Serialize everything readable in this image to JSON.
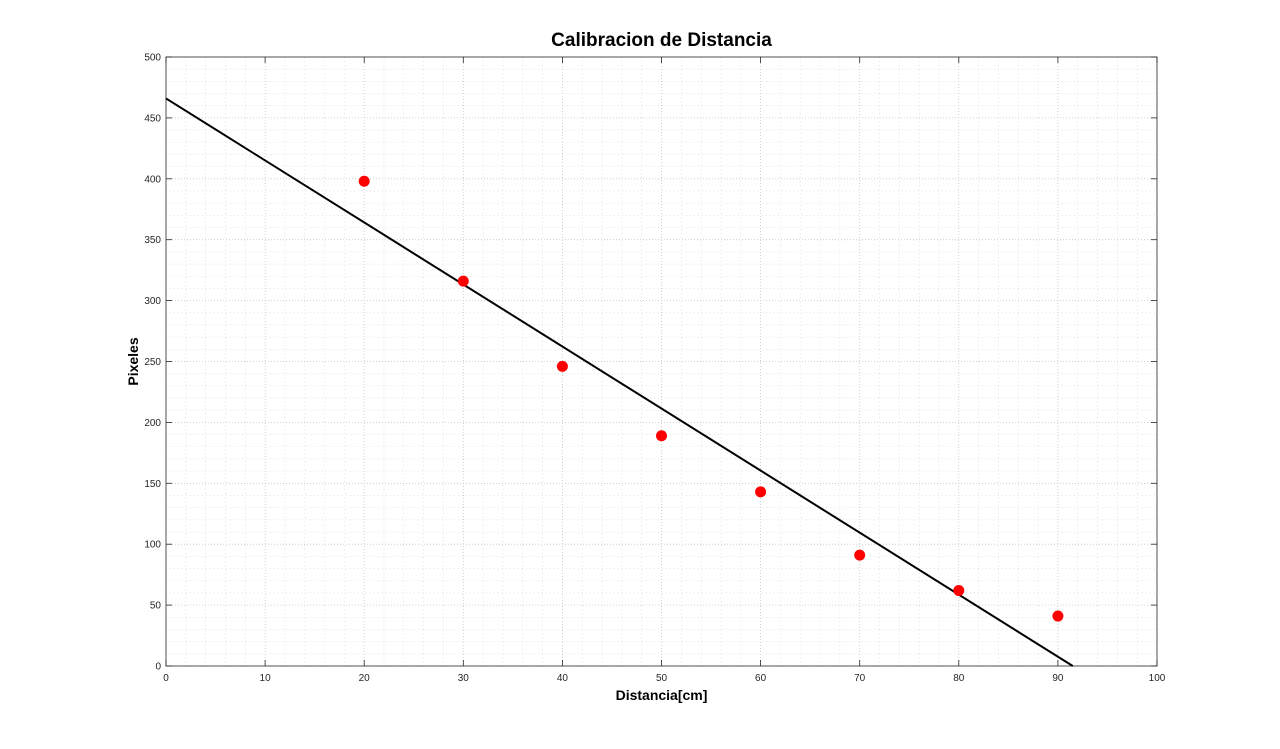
{
  "chart_data": {
    "type": "scatter",
    "title": "Calibracion de Distancia",
    "xlabel": "Distancia[cm]",
    "ylabel": "Pixeles",
    "xlim": [
      0,
      100
    ],
    "ylim": [
      0,
      500
    ],
    "xticks": [
      0,
      10,
      20,
      30,
      40,
      50,
      60,
      70,
      80,
      90,
      100
    ],
    "yticks": [
      0,
      50,
      100,
      150,
      200,
      250,
      300,
      350,
      400,
      450,
      500
    ],
    "grid": true,
    "minor_grid": true,
    "series": [
      {
        "type": "scatter",
        "color": "#ff0000",
        "marker": "filled-circle",
        "x": [
          20,
          30,
          40,
          50,
          60,
          70,
          80,
          90
        ],
        "y": [
          398,
          316,
          246,
          189,
          143,
          91,
          62,
          41
        ]
      },
      {
        "type": "line",
        "color": "#000000",
        "x": [
          0,
          91.5
        ],
        "y": [
          466,
          0
        ]
      }
    ]
  }
}
